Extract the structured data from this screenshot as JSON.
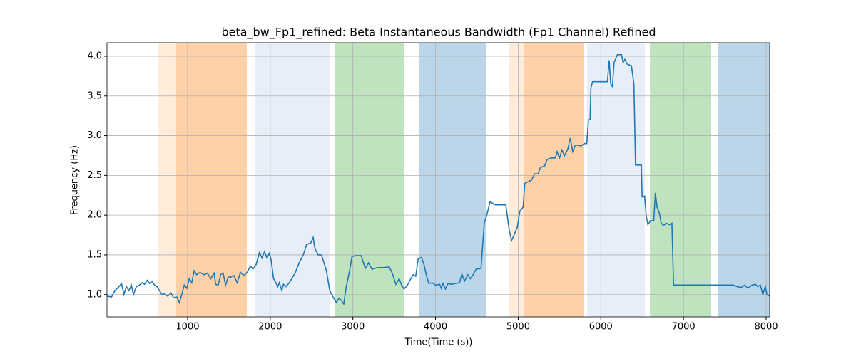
{
  "chart_data": {
    "type": "line",
    "title": "beta_bw_Fp1_refined: Beta Instantaneous Bandwidth (Fp1 Channel) Refined",
    "xlabel": "Time(Time (s))",
    "ylabel": "Frequency (Hz)",
    "color": "#1f77b4",
    "grid": true,
    "xlim": [
      25,
      8043
    ],
    "ylim": [
      0.72,
      4.17
    ],
    "xticks": [
      1000,
      2000,
      3000,
      4000,
      5000,
      6000,
      7000,
      8000
    ],
    "yticks": [
      {
        "value": 1,
        "label": "1.0"
      },
      1.5,
      {
        "value": 2,
        "label": "2.0"
      },
      2.5,
      {
        "value": 3,
        "label": "3.0"
      },
      3.5,
      {
        "value": 4,
        "label": "4.0"
      }
    ],
    "spans": [
      {
        "start": 646,
        "end": 1717,
        "color": "#ff7f0e",
        "opacity": 0.15
      },
      {
        "start": 862,
        "end": 1717,
        "color": "#ff7f0e",
        "opacity": 0.25
      },
      {
        "start": 1820,
        "end": 2727,
        "color": "#aec7e8",
        "opacity": 0.3
      },
      {
        "start": 2779,
        "end": 3616,
        "color": "#2ca02c",
        "opacity": 0.3
      },
      {
        "start": 3797,
        "end": 4608,
        "color": "#1f77b4",
        "opacity": 0.3
      },
      {
        "start": 4884,
        "end": 5791,
        "color": "#ff7f0e",
        "opacity": 0.15
      },
      {
        "start": 5066,
        "end": 5791,
        "color": "#ff7f0e",
        "opacity": 0.25
      },
      {
        "start": 5834,
        "end": 6533,
        "color": "#aec7e8",
        "opacity": 0.3
      },
      {
        "start": 6594,
        "end": 7335,
        "color": "#2ca02c",
        "opacity": 0.3
      },
      {
        "start": 7422,
        "end": 8043,
        "color": "#1f77b4",
        "opacity": 0.3
      }
    ],
    "x": [
      25,
      80,
      120,
      170,
      200,
      230,
      260,
      290,
      320,
      345,
      380,
      420,
      450,
      480,
      510,
      540,
      570,
      600,
      630,
      660,
      690,
      720,
      760,
      800,
      830,
      870,
      900,
      930,
      960,
      990,
      1020,
      1050,
      1080,
      1110,
      1150,
      1200,
      1240,
      1280,
      1320,
      1340,
      1370,
      1400,
      1430,
      1460,
      1490,
      1520,
      1560,
      1600,
      1640,
      1680,
      1720,
      1760,
      1790,
      1830,
      1870,
      1900,
      1930,
      1960,
      1990,
      2010,
      2040,
      2060,
      2090,
      2110,
      2140,
      2160,
      2190,
      2230,
      2260,
      2300,
      2350,
      2400,
      2440,
      2490,
      2520,
      2540,
      2580,
      2620,
      2680,
      2720,
      2760,
      2800,
      2830,
      2860,
      2890,
      2920,
      2960,
      2990,
      3030,
      3100,
      3150,
      3190,
      3230,
      3300,
      3380,
      3440,
      3480,
      3520,
      3560,
      3590,
      3620,
      3660,
      3700,
      3730,
      3760,
      3790,
      3830,
      3860,
      3890,
      3920,
      3960,
      4000,
      4050,
      4070,
      4090,
      4120,
      4150,
      4190,
      4240,
      4290,
      4320,
      4350,
      4390,
      4420,
      4450,
      4490,
      4550,
      4590,
      4620,
      4660,
      4720,
      4800,
      4850,
      4890,
      4920,
      4950,
      4990,
      5020,
      5060,
      5080,
      5120,
      5160,
      5200,
      5240,
      5270,
      5320,
      5350,
      5400,
      5450,
      5470,
      5500,
      5530,
      5560,
      5600,
      5630,
      5660,
      5690,
      5730,
      5760,
      5800,
      5830,
      5850,
      5870,
      5880,
      5900,
      5950,
      6080,
      6100,
      6120,
      6140,
      6160,
      6200,
      6250,
      6270,
      6290,
      6320,
      6370,
      6400,
      6420,
      6490,
      6500,
      6530,
      6550,
      6570,
      6600,
      6640,
      6660,
      6680,
      6710,
      6730,
      6760,
      6790,
      6830,
      6860,
      6880,
      7000,
      7200,
      7300,
      7400,
      7600,
      7650,
      7700,
      7740,
      7780,
      7830,
      7870,
      7900,
      7930,
      7960,
      7990,
      8010,
      8043
    ],
    "values": [
      0.98,
      0.97,
      1.05,
      1.1,
      1.14,
      1.0,
      1.1,
      1.05,
      1.12,
      1.0,
      1.1,
      1.12,
      1.15,
      1.13,
      1.18,
      1.14,
      1.17,
      1.12,
      1.1,
      1.05,
      1.0,
      1.01,
      0.98,
      1.02,
      0.96,
      0.97,
      0.9,
      1.0,
      1.12,
      1.08,
      1.2,
      1.15,
      1.3,
      1.25,
      1.28,
      1.25,
      1.27,
      1.2,
      1.27,
      1.13,
      1.12,
      1.25,
      1.27,
      1.12,
      1.22,
      1.22,
      1.24,
      1.15,
      1.28,
      1.24,
      1.28,
      1.36,
      1.32,
      1.38,
      1.53,
      1.46,
      1.54,
      1.46,
      1.52,
      1.44,
      1.2,
      1.17,
      1.1,
      1.15,
      1.05,
      1.13,
      1.1,
      1.15,
      1.2,
      1.27,
      1.4,
      1.5,
      1.63,
      1.65,
      1.72,
      1.58,
      1.5,
      1.5,
      1.3,
      1.05,
      0.97,
      0.9,
      0.95,
      0.93,
      0.88,
      1.1,
      1.3,
      1.48,
      1.49,
      1.49,
      1.33,
      1.4,
      1.32,
      1.34,
      1.34,
      1.35,
      1.26,
      1.13,
      1.2,
      1.12,
      1.07,
      1.12,
      1.2,
      1.25,
      1.23,
      1.45,
      1.47,
      1.38,
      1.24,
      1.14,
      1.15,
      1.12,
      1.13,
      1.08,
      1.14,
      1.07,
      1.14,
      1.13,
      1.14,
      1.15,
      1.26,
      1.17,
      1.25,
      1.2,
      1.24,
      1.32,
      1.33,
      1.9,
      2.0,
      2.17,
      2.13,
      2.13,
      2.13,
      1.82,
      1.68,
      1.75,
      1.85,
      2.05,
      2.1,
      2.4,
      2.42,
      2.44,
      2.52,
      2.52,
      2.6,
      2.62,
      2.7,
      2.72,
      2.72,
      2.8,
      2.72,
      2.82,
      2.75,
      2.83,
      2.97,
      2.8,
      2.88,
      2.88,
      2.87,
      2.9,
      2.9,
      3.2,
      3.2,
      3.6,
      3.68,
      3.68,
      3.68,
      3.95,
      3.65,
      3.62,
      3.92,
      4.02,
      4.02,
      3.92,
      3.96,
      3.9,
      3.88,
      3.65,
      2.63,
      2.63,
      2.23,
      2.24,
      1.98,
      1.88,
      1.93,
      1.93,
      2.28,
      2.1,
      2.02,
      1.9,
      1.87,
      1.9,
      1.88,
      1.9,
      1.12,
      1.12,
      1.12,
      1.12,
      1.12,
      1.12,
      1.1,
      1.09,
      1.12,
      1.08,
      1.12,
      1.13,
      1.1,
      1.12,
      1.0,
      1.1,
      1.0,
      0.98
    ]
  }
}
